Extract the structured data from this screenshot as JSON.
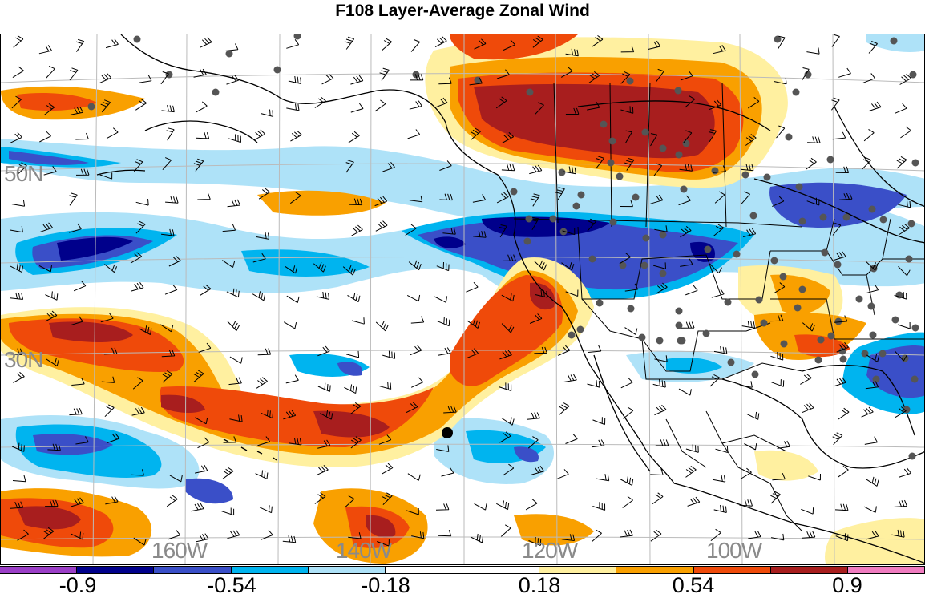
{
  "title": "F108 Layer-Average Zonal Wind",
  "map": {
    "lat_labels": [
      "50N",
      "30N"
    ],
    "lon_labels": [
      "160W",
      "140W",
      "120W",
      "100W"
    ],
    "features": [
      "zonal-wind-shading",
      "wind-barbs",
      "station-dots",
      "coastlines",
      "political-boundaries",
      "lat-lon-grid"
    ]
  },
  "colorbar": {
    "colors": [
      "#9b3fc7",
      "#00008b",
      "#3a4fc8",
      "#00b4ef",
      "#aee2f8",
      "#ffffff",
      "#ffffff",
      "#fff0a0",
      "#f9a000",
      "#ef4a0a",
      "#a81e1e",
      "#f07cc0"
    ],
    "labels": [
      "-0.9",
      "-0.54",
      "-0.18",
      "0.18",
      "0.54",
      "0.9"
    ]
  }
}
